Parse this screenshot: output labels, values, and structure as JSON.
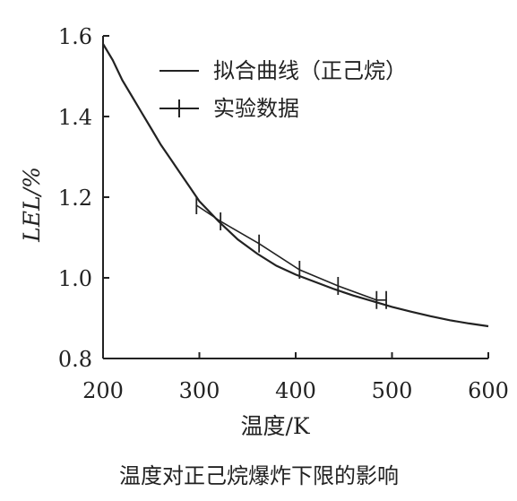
{
  "chart_data": {
    "type": "line",
    "xlabel": "温度/K",
    "ylabel": "LEL/%",
    "caption": "温度对正己烷爆炸下限的影响",
    "xlim": [
      200,
      600
    ],
    "ylim": [
      0.8,
      1.6
    ],
    "xticks": [
      200,
      300,
      400,
      500,
      600
    ],
    "yticks": [
      0.8,
      1.0,
      1.2,
      1.4,
      1.6
    ],
    "xtick_labels": [
      "200",
      "300",
      "400",
      "500",
      "600"
    ],
    "ytick_labels": [
      "0.8",
      "1.0",
      "1.2",
      "1.4",
      "1.6"
    ],
    "legend_position": "top-right",
    "series": [
      {
        "name": "拟合曲线（正己烷）",
        "style": "line",
        "x": [
          200,
          210,
          220,
          230,
          240,
          250,
          260,
          270,
          280,
          290,
          300,
          320,
          340,
          360,
          380,
          400,
          420,
          440,
          460,
          480,
          500,
          520,
          540,
          560,
          580,
          600
        ],
        "y": [
          1.58,
          1.54,
          1.49,
          1.45,
          1.41,
          1.37,
          1.33,
          1.295,
          1.26,
          1.225,
          1.19,
          1.14,
          1.095,
          1.06,
          1.03,
          1.008,
          0.99,
          0.972,
          0.956,
          0.942,
          0.928,
          0.916,
          0.905,
          0.895,
          0.887,
          0.88
        ]
      },
      {
        "name": "实验数据",
        "style": "line-plus",
        "x": [
          297,
          322,
          362,
          404,
          444,
          484,
          494
        ],
        "y": [
          1.18,
          1.14,
          1.085,
          1.02,
          0.98,
          0.945,
          0.945
        ]
      }
    ]
  },
  "colors": {
    "ink": "#222222",
    "background": "#ffffff"
  }
}
